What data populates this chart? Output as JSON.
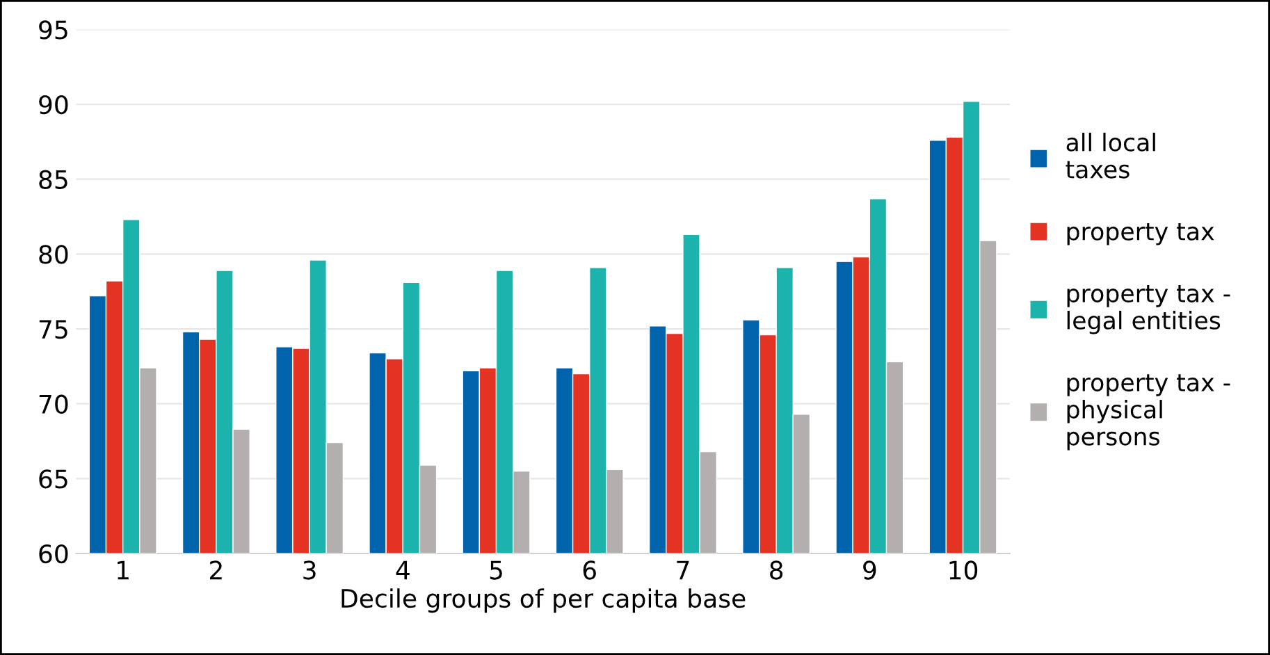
{
  "chart_data": {
    "type": "bar",
    "xlabel": "Decile groups of per capita base",
    "categories": [
      "1",
      "2",
      "3",
      "4",
      "5",
      "6",
      "7",
      "8",
      "9",
      "10"
    ],
    "series": [
      {
        "name": "all local taxes",
        "color": "#0063ac",
        "values": [
          77.2,
          74.8,
          73.8,
          73.4,
          72.2,
          72.4,
          75.2,
          75.6,
          79.5,
          87.6
        ]
      },
      {
        "name": "property tax",
        "color": "#e53323",
        "values": [
          78.2,
          74.3,
          73.7,
          73.0,
          72.4,
          72.0,
          74.7,
          74.6,
          79.8,
          87.8
        ]
      },
      {
        "name": "property tax - legal entities",
        "color": "#1cb3ac",
        "values": [
          82.3,
          78.9,
          79.6,
          78.1,
          78.9,
          79.1,
          81.3,
          79.1,
          83.7,
          90.2
        ]
      },
      {
        "name": "property tax - physical persons",
        "color": "#b2afae",
        "values": [
          72.4,
          68.3,
          67.4,
          65.9,
          65.5,
          65.6,
          66.8,
          69.3,
          72.8,
          80.9
        ]
      }
    ],
    "ylim": [
      60,
      95
    ],
    "yticks": [
      60,
      65,
      70,
      75,
      80,
      85,
      90,
      95
    ],
    "grid": "y",
    "legend": "right"
  }
}
